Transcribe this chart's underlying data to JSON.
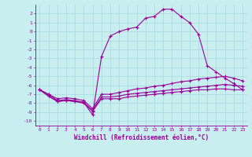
{
  "xlabel": "Windchill (Refroidissement éolien,°C)",
  "background_color": "#c8eef0",
  "grid_color": "#a8d8dc",
  "line_color": "#990099",
  "xlim": [
    -0.5,
    23.5
  ],
  "ylim": [
    -10.5,
    3.0
  ],
  "xticks": [
    0,
    1,
    2,
    3,
    4,
    5,
    6,
    7,
    8,
    9,
    10,
    11,
    12,
    13,
    14,
    15,
    16,
    17,
    18,
    19,
    20,
    21,
    22,
    23
  ],
  "yticks": [
    -10,
    -9,
    -8,
    -7,
    -6,
    -5,
    -4,
    -3,
    -2,
    -1,
    0,
    1,
    2
  ],
  "series": [
    {
      "x": [
        0,
        1,
        2,
        3,
        4,
        5,
        6,
        7,
        8,
        9,
        10,
        11,
        12,
        13,
        14,
        15,
        16,
        17,
        18,
        19,
        20,
        21,
        22,
        23
      ],
      "y": [
        -6.5,
        -7.2,
        -7.8,
        -7.7,
        -7.8,
        -8.0,
        -8.9,
        -7.5,
        -7.5,
        -7.5,
        -7.3,
        -7.2,
        -7.1,
        -7.0,
        -6.9,
        -6.8,
        -6.7,
        -6.6,
        -6.5,
        -6.5,
        -6.4,
        -6.4,
        -6.5,
        -6.5
      ]
    },
    {
      "x": [
        0,
        1,
        2,
        3,
        4,
        5,
        6,
        7,
        8,
        9,
        10,
        11,
        12,
        13,
        14,
        15,
        16,
        17,
        18,
        19,
        20,
        21,
        22,
        23
      ],
      "y": [
        -6.5,
        -7.2,
        -7.8,
        -7.7,
        -7.8,
        -7.9,
        -8.8,
        -7.3,
        -7.3,
        -7.2,
        -7.0,
        -6.9,
        -6.8,
        -6.7,
        -6.6,
        -6.5,
        -6.4,
        -6.3,
        -6.2,
        -6.1,
        -6.0,
        -5.9,
        -6.0,
        -6.1
      ]
    },
    {
      "x": [
        0,
        1,
        2,
        3,
        4,
        5,
        6,
        7,
        8,
        9,
        10,
        11,
        12,
        13,
        14,
        15,
        16,
        17,
        18,
        19,
        20,
        21,
        22,
        23
      ],
      "y": [
        -6.5,
        -7.0,
        -7.5,
        -7.4,
        -7.5,
        -7.7,
        -8.6,
        -7.0,
        -7.0,
        -6.8,
        -6.6,
        -6.4,
        -6.3,
        -6.1,
        -6.0,
        -5.8,
        -5.6,
        -5.5,
        -5.3,
        -5.2,
        -5.1,
        -5.0,
        -5.2,
        -5.5
      ]
    },
    {
      "x": [
        0,
        1,
        2,
        3,
        4,
        5,
        6,
        7,
        8,
        9,
        10,
        11,
        12,
        13,
        14,
        15,
        16,
        17,
        18,
        19,
        20,
        21,
        22,
        23
      ],
      "y": [
        -6.5,
        -7.0,
        -7.7,
        -7.6,
        -7.7,
        -7.9,
        -9.3,
        -2.8,
        -0.5,
        0.0,
        0.3,
        0.5,
        1.5,
        1.7,
        2.5,
        2.5,
        1.7,
        1.0,
        -0.3,
        -3.8,
        -4.5,
        -5.2,
        -5.8,
        -6.5
      ]
    }
  ]
}
